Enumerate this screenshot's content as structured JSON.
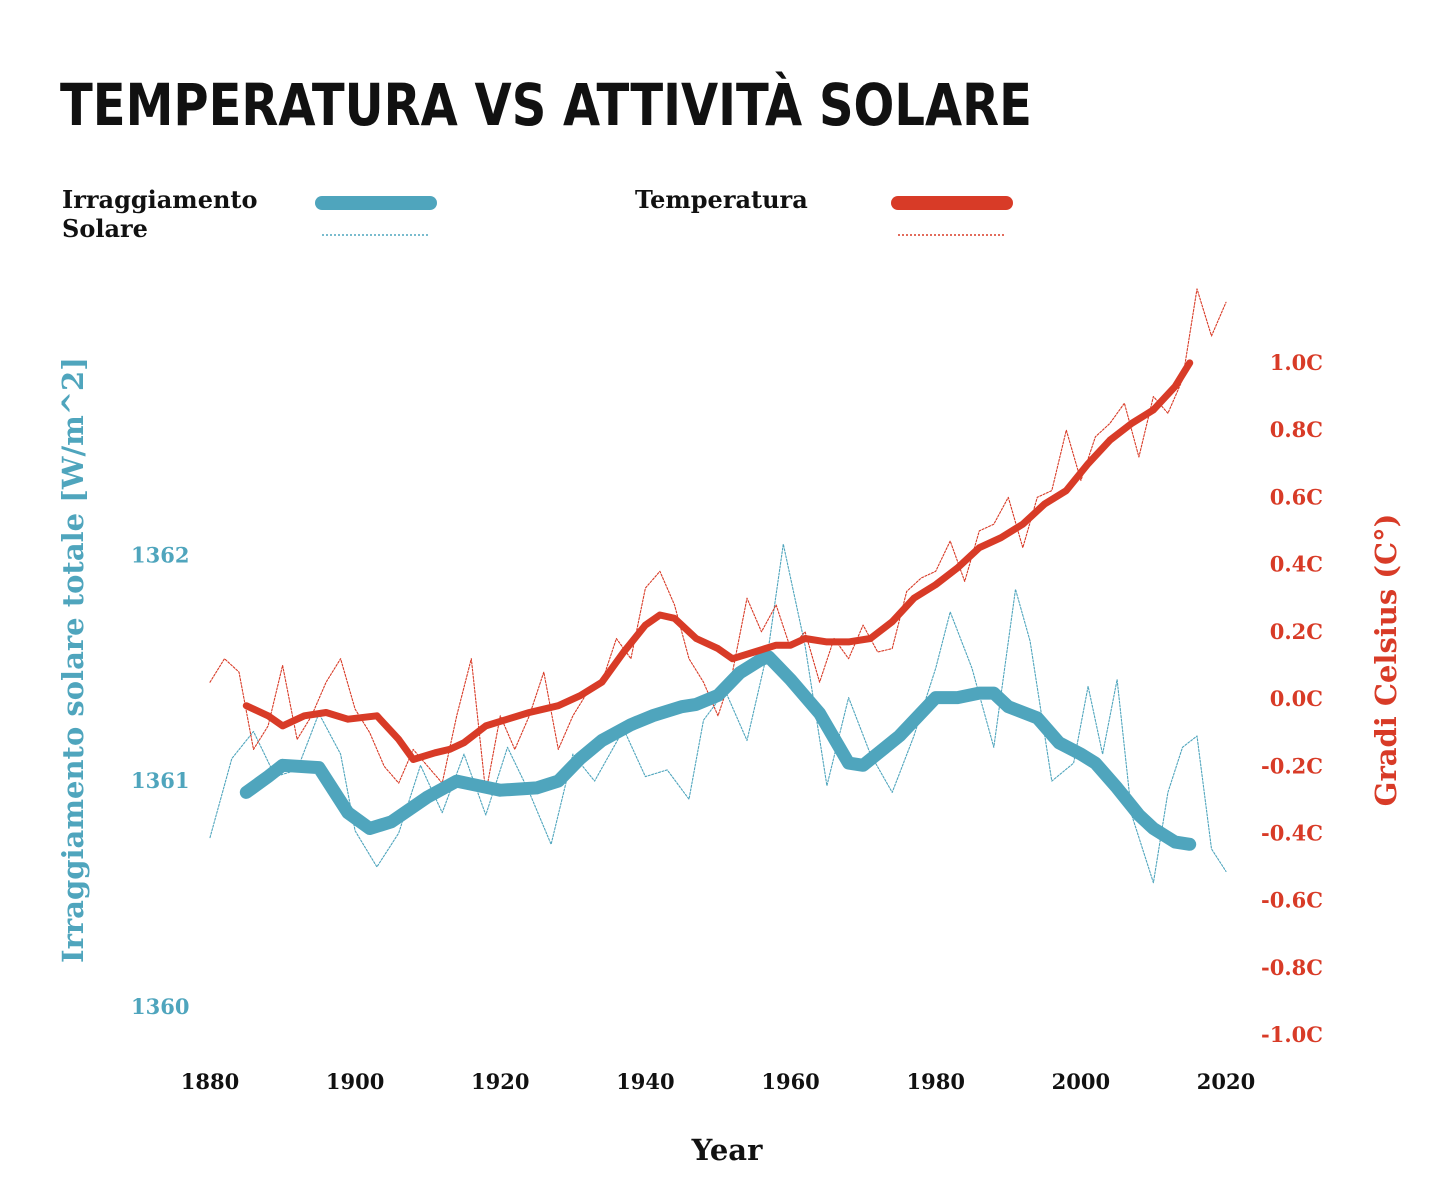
{
  "chart_data": {
    "type": "line",
    "title": "TEMPERATURA VS ATTIVITÀ SOLARE",
    "xlabel": "Year",
    "xlim": [
      1880,
      2020
    ],
    "x_ticks": [
      "1880",
      "1900",
      "1920",
      "1940",
      "1960",
      "1980",
      "2000",
      "2020"
    ],
    "colors": {
      "solar": "#4fa5bd",
      "temperature": "#d83b27",
      "text": "#111111"
    },
    "y_left": {
      "label": "Irraggiamento solare totale [W/m^2]",
      "ylim": [
        1359.8,
        1363.3
      ],
      "ticks": [
        {
          "value": 1362,
          "label": "1362"
        },
        {
          "value": 1361,
          "label": "1361"
        },
        {
          "value": 1360,
          "label": "1360"
        }
      ]
    },
    "y_right": {
      "label": "Gradi Celsius (C°)",
      "ylim": [
        -1.05,
        1.3
      ],
      "ticks": [
        {
          "value": 1.0,
          "label": "1.0C"
        },
        {
          "value": 0.8,
          "label": "0.8C"
        },
        {
          "value": 0.6,
          "label": "0.6C"
        },
        {
          "value": 0.4,
          "label": "0.4C"
        },
        {
          "value": 0.2,
          "label": "0.2C"
        },
        {
          "value": 0.0,
          "label": "0.0C"
        },
        {
          "value": -0.2,
          "label": "-0.2C"
        },
        {
          "value": -0.4,
          "label": "-0.4C"
        },
        {
          "value": -0.6,
          "label": "-0.6C"
        },
        {
          "value": -0.8,
          "label": "-0.8C"
        },
        {
          "value": -1.0,
          "label": "-1.0C"
        }
      ]
    },
    "legend": {
      "position": "top",
      "entries": [
        {
          "label_lines": [
            "Irraggiamento",
            "Solare"
          ],
          "series": "solar"
        },
        {
          "label_lines": [
            "Temperatura"
          ],
          "series": "temperature"
        }
      ]
    },
    "series": [
      {
        "id": "solar_smooth",
        "axis": "left",
        "style": "thick",
        "x": [
          1885,
          1888,
          1890,
          1895,
          1899,
          1902,
          1905,
          1910,
          1914,
          1917,
          1920,
          1925,
          1928,
          1931,
          1934,
          1938,
          1941,
          1945,
          1947,
          1950,
          1953,
          1956,
          1957,
          1960,
          1964,
          1968,
          1970,
          1975,
          1980,
          1983,
          1986,
          1988,
          1990,
          1994,
          1997,
          2000,
          2002,
          2005,
          2008,
          2010,
          2013,
          2015
        ],
        "values": [
          1360.95,
          1361.02,
          1361.07,
          1361.06,
          1360.86,
          1360.79,
          1360.82,
          1360.93,
          1361.0,
          1360.98,
          1360.96,
          1360.97,
          1361.0,
          1361.1,
          1361.18,
          1361.25,
          1361.29,
          1361.33,
          1361.34,
          1361.38,
          1361.48,
          1361.54,
          1361.55,
          1361.45,
          1361.3,
          1361.08,
          1361.07,
          1361.2,
          1361.37,
          1361.37,
          1361.39,
          1361.39,
          1361.33,
          1361.28,
          1361.17,
          1361.12,
          1361.08,
          1360.97,
          1360.85,
          1360.79,
          1360.73,
          1360.72
        ]
      },
      {
        "id": "solar_annual",
        "axis": "left",
        "style": "dotted",
        "x": [
          1880,
          1883,
          1886,
          1889,
          1892,
          1895,
          1898,
          1900,
          1903,
          1906,
          1909,
          1912,
          1915,
          1918,
          1921,
          1924,
          1927,
          1930,
          1933,
          1937,
          1940,
          1943,
          1946,
          1948,
          1951,
          1954,
          1957,
          1959,
          1962,
          1965,
          1968,
          1971,
          1974,
          1977,
          1980,
          1982,
          1985,
          1988,
          1991,
          1993,
          1996,
          1999,
          2001,
          2003,
          2005,
          2007,
          2010,
          2012,
          2014,
          2016,
          2018,
          2020
        ],
        "values": [
          1360.75,
          1361.1,
          1361.22,
          1361.02,
          1361.05,
          1361.3,
          1361.12,
          1360.78,
          1360.62,
          1360.77,
          1361.07,
          1360.86,
          1361.12,
          1360.85,
          1361.15,
          1360.95,
          1360.72,
          1361.12,
          1361.0,
          1361.23,
          1361.02,
          1361.05,
          1360.92,
          1361.27,
          1361.4,
          1361.18,
          1361.6,
          1362.05,
          1361.6,
          1360.98,
          1361.37,
          1361.12,
          1360.95,
          1361.2,
          1361.5,
          1361.75,
          1361.5,
          1361.15,
          1361.85,
          1361.62,
          1361.0,
          1361.08,
          1361.42,
          1361.12,
          1361.45,
          1360.85,
          1360.55,
          1360.95,
          1361.15,
          1361.2,
          1360.7,
          1360.6
        ]
      },
      {
        "id": "temp_smooth",
        "axis": "right",
        "style": "thick",
        "x": [
          1885,
          1888,
          1890,
          1893,
          1896,
          1899,
          1903,
          1906,
          1908,
          1911,
          1913,
          1915,
          1918,
          1921,
          1924,
          1928,
          1931,
          1934,
          1937,
          1940,
          1942,
          1944,
          1947,
          1950,
          1952,
          1955,
          1958,
          1960,
          1962,
          1965,
          1968,
          1971,
          1974,
          1977,
          1980,
          1983,
          1986,
          1989,
          1992,
          1995,
          1998,
          2001,
          2004,
          2007,
          2010,
          2013,
          2015
        ],
        "values": [
          -0.02,
          -0.05,
          -0.08,
          -0.05,
          -0.04,
          -0.06,
          -0.05,
          -0.12,
          -0.18,
          -0.16,
          -0.15,
          -0.13,
          -0.08,
          -0.06,
          -0.04,
          -0.02,
          0.01,
          0.05,
          0.14,
          0.22,
          0.25,
          0.24,
          0.18,
          0.15,
          0.12,
          0.14,
          0.16,
          0.16,
          0.18,
          0.17,
          0.17,
          0.18,
          0.23,
          0.3,
          0.34,
          0.39,
          0.45,
          0.48,
          0.52,
          0.58,
          0.62,
          0.7,
          0.77,
          0.82,
          0.86,
          0.93,
          1.0
        ]
      },
      {
        "id": "temp_annual",
        "axis": "right",
        "style": "dotted",
        "x": [
          1880,
          1882,
          1884,
          1886,
          1888,
          1890,
          1892,
          1894,
          1896,
          1898,
          1900,
          1902,
          1904,
          1906,
          1908,
          1910,
          1912,
          1914,
          1916,
          1918,
          1920,
          1922,
          1924,
          1926,
          1928,
          1930,
          1932,
          1934,
          1936,
          1938,
          1940,
          1942,
          1944,
          1946,
          1948,
          1950,
          1952,
          1954,
          1956,
          1958,
          1960,
          1962,
          1964,
          1966,
          1968,
          1970,
          1972,
          1974,
          1976,
          1978,
          1980,
          1982,
          1984,
          1986,
          1988,
          1990,
          1992,
          1994,
          1996,
          1998,
          2000,
          2002,
          2004,
          2006,
          2008,
          2010,
          2012,
          2014,
          2016,
          2018,
          2020
        ],
        "values": [
          0.05,
          0.12,
          0.08,
          -0.15,
          -0.08,
          0.1,
          -0.12,
          -0.05,
          0.05,
          0.12,
          -0.03,
          -0.1,
          -0.2,
          -0.25,
          -0.15,
          -0.2,
          -0.25,
          -0.05,
          0.12,
          -0.28,
          -0.05,
          -0.15,
          -0.05,
          0.08,
          -0.15,
          -0.05,
          0.02,
          0.05,
          0.18,
          0.12,
          0.33,
          0.38,
          0.28,
          0.12,
          0.05,
          -0.05,
          0.08,
          0.3,
          0.2,
          0.28,
          0.15,
          0.2,
          0.05,
          0.18,
          0.12,
          0.22,
          0.14,
          0.15,
          0.32,
          0.36,
          0.38,
          0.47,
          0.35,
          0.5,
          0.52,
          0.6,
          0.45,
          0.6,
          0.62,
          0.8,
          0.65,
          0.78,
          0.82,
          0.88,
          0.72,
          0.9,
          0.85,
          0.95,
          1.22,
          1.08,
          1.18
        ]
      }
    ]
  }
}
